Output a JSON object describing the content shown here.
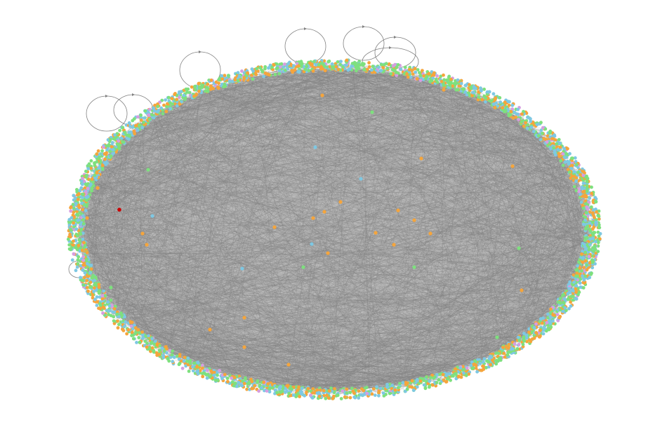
{
  "graph": {
    "layout": "circular",
    "background_color": "#ffffff",
    "edge_color": "#808080",
    "highlight_node_color": "#cc0000",
    "node_palette": [
      "#f5a53c",
      "#7ec8e3",
      "#7ee07e",
      "#d69ee0"
    ],
    "self_loop_count": 8,
    "interior_node_count": 36
  }
}
